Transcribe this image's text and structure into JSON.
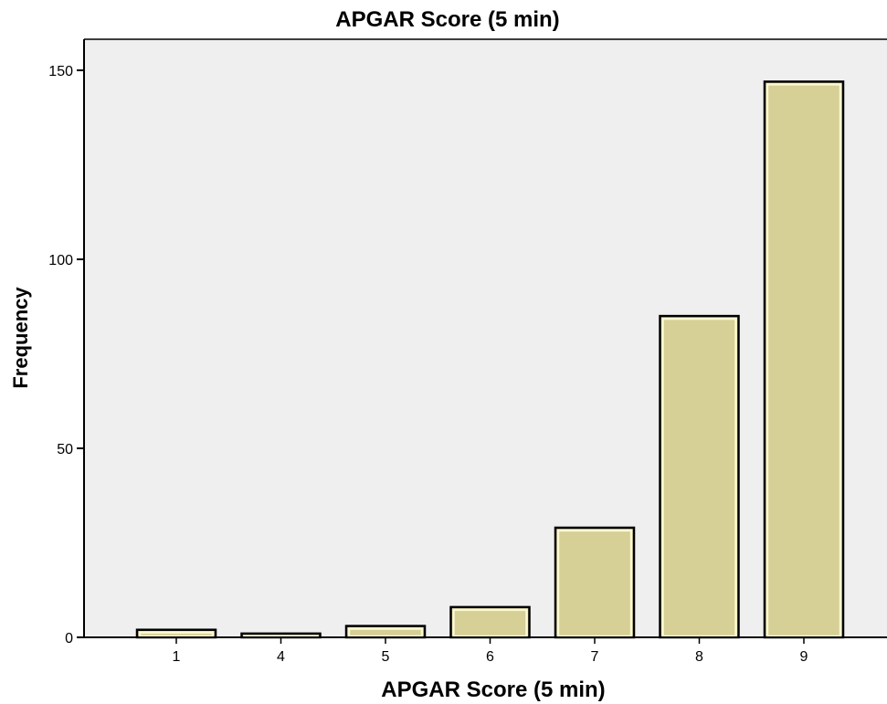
{
  "chart_data": {
    "type": "bar",
    "title": "APGAR Score (5 min)",
    "xlabel": "APGAR Score (5 min)",
    "ylabel": "Frequency",
    "categories": [
      "1",
      "4",
      "5",
      "6",
      "7",
      "8",
      "9"
    ],
    "values": [
      2,
      1,
      3,
      8,
      29,
      85,
      147
    ],
    "ylim": [
      0,
      160
    ],
    "yticks": [
      0,
      50,
      100,
      150
    ],
    "grid": false,
    "legend": "none",
    "colors": {
      "plot_background": "#efefef",
      "bar_fill": "#d6cf96",
      "bar_highlight": "#fbf8d2",
      "bar_stroke": "#000000",
      "axis": "#000000"
    }
  }
}
